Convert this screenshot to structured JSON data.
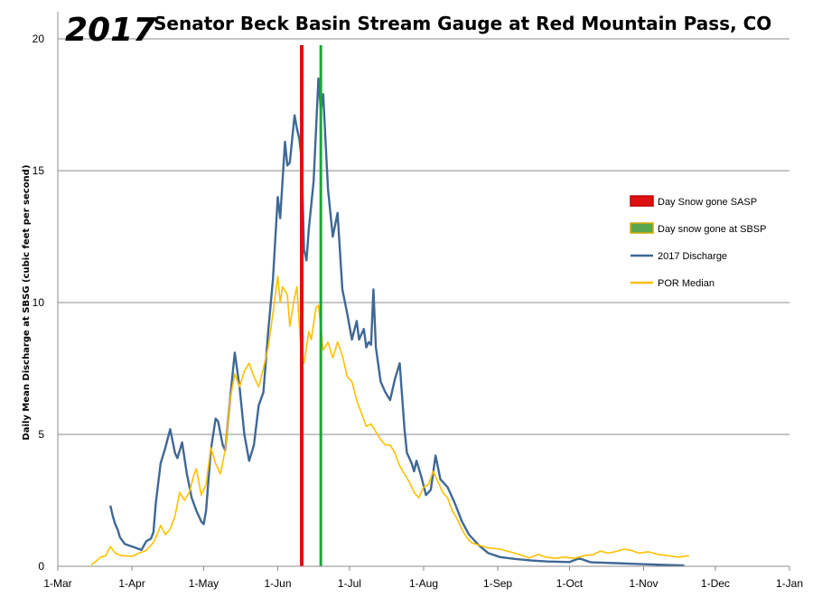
{
  "chart_data": {
    "type": "line",
    "title_year": "2017",
    "title": "Senator Beck Basin Stream Gauge at Red Mountain Pass, CO",
    "ylabel": "Daily Mean Discharge at SBSG (cubic feet per second)",
    "xlabel": "",
    "ylim": [
      0,
      20
    ],
    "yticks": [
      0,
      5,
      10,
      15,
      20
    ],
    "xlim": [
      "2017-03-01",
      "2018-01-01"
    ],
    "xticks": [
      "1-Mar",
      "1-Apr",
      "1-May",
      "1-Jun",
      "1-Jul",
      "1-Aug",
      "1-Sep",
      "1-Oct",
      "1-Nov",
      "1-Dec",
      "1-Jan"
    ],
    "grid": "horizontal",
    "legend_position": "right",
    "vlines": [
      {
        "name": "Day Snow gone SASP",
        "date": "2017-06-11",
        "color": "#e01010"
      },
      {
        "name": "Day snow gone at SBSP",
        "date": "2017-06-19",
        "color": "#1aa63a"
      }
    ],
    "series": [
      {
        "name": "2017 Discharge",
        "color": "#3f6896",
        "points": [
          [
            "2017-03-23",
            2.3
          ],
          [
            "2017-03-24",
            1.9
          ],
          [
            "2017-03-25",
            1.6
          ],
          [
            "2017-03-26",
            1.4
          ],
          [
            "2017-03-27",
            1.1
          ],
          [
            "2017-03-29",
            0.85
          ],
          [
            "2017-04-02",
            0.72
          ],
          [
            "2017-04-05",
            0.62
          ],
          [
            "2017-04-07",
            0.95
          ],
          [
            "2017-04-09",
            1.05
          ],
          [
            "2017-04-10",
            1.3
          ],
          [
            "2017-04-11",
            2.4
          ],
          [
            "2017-04-13",
            3.9
          ],
          [
            "2017-04-15",
            4.5
          ],
          [
            "2017-04-17",
            5.2
          ],
          [
            "2017-04-19",
            4.3
          ],
          [
            "2017-04-20",
            4.1
          ],
          [
            "2017-04-22",
            4.7
          ],
          [
            "2017-04-24",
            3.5
          ],
          [
            "2017-04-26",
            2.6
          ],
          [
            "2017-04-28",
            2.1
          ],
          [
            "2017-04-30",
            1.7
          ],
          [
            "2017-05-01",
            1.6
          ],
          [
            "2017-05-02",
            2.1
          ],
          [
            "2017-05-04",
            4.4
          ],
          [
            "2017-05-06",
            5.6
          ],
          [
            "2017-05-07",
            5.5
          ],
          [
            "2017-05-09",
            4.6
          ],
          [
            "2017-05-10",
            4.4
          ],
          [
            "2017-05-12",
            6.3
          ],
          [
            "2017-05-14",
            8.1
          ],
          [
            "2017-05-16",
            6.8
          ],
          [
            "2017-05-18",
            5.0
          ],
          [
            "2017-05-20",
            4.0
          ],
          [
            "2017-05-22",
            4.6
          ],
          [
            "2017-05-24",
            6.1
          ],
          [
            "2017-05-26",
            6.6
          ],
          [
            "2017-05-28",
            8.9
          ],
          [
            "2017-05-30",
            10.9
          ],
          [
            "2017-06-01",
            14.0
          ],
          [
            "2017-06-02",
            13.2
          ],
          [
            "2017-06-04",
            16.1
          ],
          [
            "2017-06-05",
            15.2
          ],
          [
            "2017-06-06",
            15.3
          ],
          [
            "2017-06-08",
            17.1
          ],
          [
            "2017-06-09",
            16.6
          ],
          [
            "2017-06-10",
            16.2
          ],
          [
            "2017-06-11",
            15.4
          ],
          [
            "2017-06-12",
            12.0
          ],
          [
            "2017-06-13",
            11.6
          ],
          [
            "2017-06-14",
            12.8
          ],
          [
            "2017-06-16",
            14.6
          ],
          [
            "2017-06-18",
            18.5
          ],
          [
            "2017-06-19",
            17.3
          ],
          [
            "2017-06-20",
            17.9
          ],
          [
            "2017-06-22",
            14.3
          ],
          [
            "2017-06-24",
            12.5
          ],
          [
            "2017-06-26",
            13.4
          ],
          [
            "2017-06-28",
            10.5
          ],
          [
            "2017-06-30",
            9.6
          ],
          [
            "2017-07-02",
            8.6
          ],
          [
            "2017-07-04",
            9.3
          ],
          [
            "2017-07-05",
            8.6
          ],
          [
            "2017-07-07",
            9.0
          ],
          [
            "2017-07-08",
            8.3
          ],
          [
            "2017-07-09",
            8.5
          ],
          [
            "2017-07-10",
            8.4
          ],
          [
            "2017-07-11",
            10.5
          ],
          [
            "2017-07-12",
            8.3
          ],
          [
            "2017-07-14",
            7.0
          ],
          [
            "2017-07-16",
            6.6
          ],
          [
            "2017-07-18",
            6.3
          ],
          [
            "2017-07-20",
            7.1
          ],
          [
            "2017-07-22",
            7.7
          ],
          [
            "2017-07-24",
            5.2
          ],
          [
            "2017-07-25",
            4.3
          ],
          [
            "2017-07-27",
            3.9
          ],
          [
            "2017-07-28",
            3.6
          ],
          [
            "2017-07-29",
            4.0
          ],
          [
            "2017-07-31",
            3.4
          ],
          [
            "2017-08-02",
            2.7
          ],
          [
            "2017-08-04",
            2.9
          ],
          [
            "2017-08-06",
            4.2
          ],
          [
            "2017-08-08",
            3.3
          ],
          [
            "2017-08-11",
            3.0
          ],
          [
            "2017-08-14",
            2.4
          ],
          [
            "2017-08-17",
            1.7
          ],
          [
            "2017-08-20",
            1.2
          ],
          [
            "2017-08-24",
            0.8
          ],
          [
            "2017-08-28",
            0.5
          ],
          [
            "2017-09-02",
            0.35
          ],
          [
            "2017-09-08",
            0.28
          ],
          [
            "2017-09-15",
            0.22
          ],
          [
            "2017-09-22",
            0.18
          ],
          [
            "2017-10-01",
            0.16
          ],
          [
            "2017-10-05",
            0.3
          ],
          [
            "2017-10-10",
            0.15
          ],
          [
            "2017-10-20",
            0.12
          ],
          [
            "2017-11-01",
            0.08
          ],
          [
            "2017-11-10",
            0.05
          ],
          [
            "2017-11-18",
            0.03
          ]
        ]
      },
      {
        "name": "POR Median",
        "color": "#ffc000",
        "points": [
          [
            "2017-03-15",
            0.05
          ],
          [
            "2017-03-17",
            0.2
          ],
          [
            "2017-03-19",
            0.35
          ],
          [
            "2017-03-21",
            0.4
          ],
          [
            "2017-03-23",
            0.75
          ],
          [
            "2017-03-25",
            0.5
          ],
          [
            "2017-03-27",
            0.42
          ],
          [
            "2017-03-29",
            0.4
          ],
          [
            "2017-04-01",
            0.38
          ],
          [
            "2017-04-04",
            0.5
          ],
          [
            "2017-04-07",
            0.6
          ],
          [
            "2017-04-10",
            0.9
          ],
          [
            "2017-04-12",
            1.3
          ],
          [
            "2017-04-13",
            1.55
          ],
          [
            "2017-04-15",
            1.2
          ],
          [
            "2017-04-17",
            1.4
          ],
          [
            "2017-04-19",
            1.9
          ],
          [
            "2017-04-21",
            2.8
          ],
          [
            "2017-04-23",
            2.5
          ],
          [
            "2017-04-25",
            2.8
          ],
          [
            "2017-04-27",
            3.5
          ],
          [
            "2017-04-28",
            3.7
          ],
          [
            "2017-04-30",
            2.7
          ],
          [
            "2017-05-02",
            3.1
          ],
          [
            "2017-05-04",
            4.5
          ],
          [
            "2017-05-06",
            3.9
          ],
          [
            "2017-05-08",
            3.5
          ],
          [
            "2017-05-10",
            4.4
          ],
          [
            "2017-05-12",
            6.3
          ],
          [
            "2017-05-14",
            7.3
          ],
          [
            "2017-05-16",
            6.8
          ],
          [
            "2017-05-18",
            7.4
          ],
          [
            "2017-05-20",
            7.7
          ],
          [
            "2017-05-22",
            7.2
          ],
          [
            "2017-05-24",
            6.8
          ],
          [
            "2017-05-26",
            7.5
          ],
          [
            "2017-05-28",
            8.3
          ],
          [
            "2017-05-30",
            9.6
          ],
          [
            "2017-06-01",
            11.0
          ],
          [
            "2017-06-02",
            10.0
          ],
          [
            "2017-06-03",
            10.6
          ],
          [
            "2017-06-05",
            10.3
          ],
          [
            "2017-06-06",
            9.1
          ],
          [
            "2017-06-08",
            10.2
          ],
          [
            "2017-06-09",
            10.6
          ],
          [
            "2017-06-10",
            9.1
          ],
          [
            "2017-06-11",
            7.8
          ],
          [
            "2017-06-12",
            7.7
          ],
          [
            "2017-06-14",
            8.9
          ],
          [
            "2017-06-15",
            8.6
          ],
          [
            "2017-06-17",
            9.8
          ],
          [
            "2017-06-18",
            9.9
          ],
          [
            "2017-06-20",
            8.2
          ],
          [
            "2017-06-22",
            8.5
          ],
          [
            "2017-06-24",
            7.9
          ],
          [
            "2017-06-26",
            8.5
          ],
          [
            "2017-06-28",
            8.0
          ],
          [
            "2017-06-30",
            7.2
          ],
          [
            "2017-07-02",
            7.0
          ],
          [
            "2017-07-04",
            6.3
          ],
          [
            "2017-07-06",
            5.8
          ],
          [
            "2017-07-08",
            5.3
          ],
          [
            "2017-07-10",
            5.4
          ],
          [
            "2017-07-12",
            5.1
          ],
          [
            "2017-07-14",
            4.8
          ],
          [
            "2017-07-16",
            4.6
          ],
          [
            "2017-07-18",
            4.6
          ],
          [
            "2017-07-20",
            4.3
          ],
          [
            "2017-07-22",
            3.8
          ],
          [
            "2017-07-24",
            3.5
          ],
          [
            "2017-07-26",
            3.2
          ],
          [
            "2017-07-28",
            2.8
          ],
          [
            "2017-07-30",
            2.6
          ],
          [
            "2017-08-01",
            3.0
          ],
          [
            "2017-08-03",
            3.1
          ],
          [
            "2017-08-05",
            3.6
          ],
          [
            "2017-08-07",
            3.2
          ],
          [
            "2017-08-09",
            2.8
          ],
          [
            "2017-08-11",
            2.6
          ],
          [
            "2017-08-13",
            2.1
          ],
          [
            "2017-08-15",
            1.8
          ],
          [
            "2017-08-17",
            1.4
          ],
          [
            "2017-08-19",
            1.1
          ],
          [
            "2017-08-21",
            0.9
          ],
          [
            "2017-08-24",
            0.8
          ],
          [
            "2017-08-28",
            0.7
          ],
          [
            "2017-09-02",
            0.65
          ],
          [
            "2017-09-06",
            0.55
          ],
          [
            "2017-09-10",
            0.45
          ],
          [
            "2017-09-14",
            0.32
          ],
          [
            "2017-09-18",
            0.45
          ],
          [
            "2017-09-21",
            0.35
          ],
          [
            "2017-09-25",
            0.3
          ],
          [
            "2017-09-29",
            0.35
          ],
          [
            "2017-10-03",
            0.3
          ],
          [
            "2017-10-07",
            0.4
          ],
          [
            "2017-10-11",
            0.45
          ],
          [
            "2017-10-14",
            0.58
          ],
          [
            "2017-10-17",
            0.5
          ],
          [
            "2017-10-20",
            0.55
          ],
          [
            "2017-10-24",
            0.65
          ],
          [
            "2017-10-27",
            0.6
          ],
          [
            "2017-10-30",
            0.5
          ],
          [
            "2017-11-03",
            0.55
          ],
          [
            "2017-11-07",
            0.45
          ],
          [
            "2017-11-10",
            0.42
          ],
          [
            "2017-11-13",
            0.38
          ],
          [
            "2017-11-16",
            0.35
          ],
          [
            "2017-11-18",
            0.38
          ],
          [
            "2017-11-20",
            0.4
          ]
        ]
      }
    ]
  },
  "legend": [
    {
      "label": "Day Snow gone SASP",
      "kind": "patch",
      "fill": "#e01010",
      "stroke": "#c00000"
    },
    {
      "label": "Day snow gone at SBSP",
      "kind": "patch",
      "fill": "#5aa650",
      "stroke": "#d8a800"
    },
    {
      "label": "2017 Discharge",
      "kind": "line",
      "color": "#3f6896"
    },
    {
      "label": "POR Median",
      "kind": "line",
      "color": "#ffc000"
    }
  ]
}
